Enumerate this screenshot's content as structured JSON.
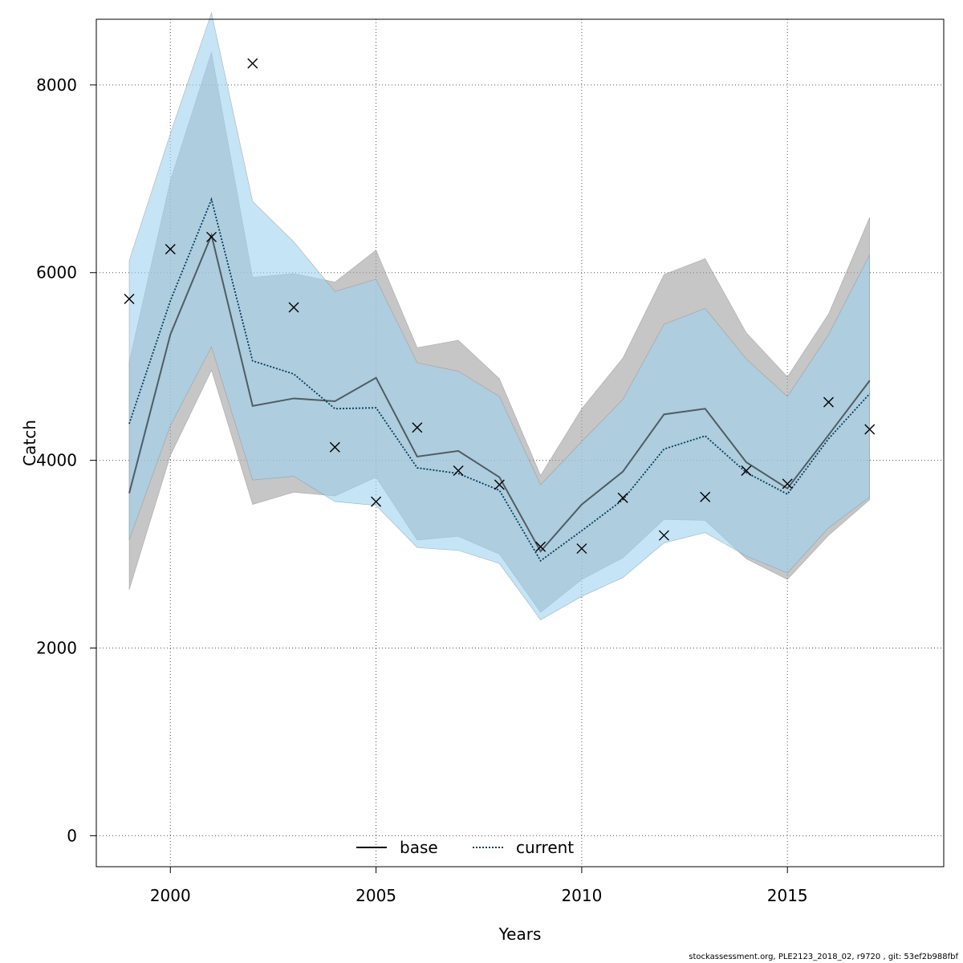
{
  "chart_data": {
    "type": "line",
    "xlabel": "Years",
    "ylabel": "Catch",
    "xlim": [
      1998.2,
      2018.8
    ],
    "ylim": [
      -330,
      8700
    ],
    "x_ticks": [
      2000,
      2005,
      2010,
      2015
    ],
    "y_ticks": [
      0,
      2000,
      4000,
      6000,
      8000
    ],
    "grid": true,
    "legend_position": "bottom-center",
    "years": [
      1999,
      2000,
      2001,
      2002,
      2003,
      2004,
      2005,
      2006,
      2007,
      2008,
      2009,
      2010,
      2011,
      2012,
      2013,
      2014,
      2015,
      2016,
      2017
    ],
    "observed": {
      "marker": "x",
      "values": [
        5720,
        6250,
        6380,
        8230,
        5630,
        4140,
        3560,
        4350,
        3890,
        3740,
        3080,
        3060,
        3600,
        3200,
        3610,
        3890,
        3750,
        4620,
        4330
      ]
    },
    "series": [
      {
        "name": "base",
        "line_style": "solid",
        "line_color": "#000000",
        "band_color": "#a0a0a0",
        "values": [
          3650,
          5340,
          6400,
          4580,
          4660,
          4630,
          4880,
          4040,
          4100,
          3820,
          3030,
          3530,
          3880,
          4490,
          4550,
          3980,
          3700,
          4270,
          4850
        ],
        "upper": [
          5050,
          6980,
          8350,
          5950,
          5990,
          5900,
          6240,
          5200,
          5280,
          4870,
          3840,
          4550,
          5090,
          5980,
          6150,
          5360,
          4890,
          5560,
          6590
        ],
        "lower": [
          2620,
          4050,
          4960,
          3530,
          3660,
          3620,
          3820,
          3150,
          3190,
          3000,
          2380,
          2730,
          2960,
          3370,
          3360,
          2950,
          2730,
          3200,
          3580
        ]
      },
      {
        "name": "current",
        "line_style": "dotted",
        "line_color": "#003c5a",
        "band_color": "#9ed2ee",
        "values": [
          4390,
          5700,
          6780,
          5060,
          4920,
          4550,
          4560,
          3920,
          3860,
          3680,
          2930,
          3250,
          3580,
          4120,
          4260,
          3870,
          3640,
          4230,
          4710
        ],
        "upper": [
          6130,
          7480,
          8770,
          6760,
          6330,
          5800,
          5930,
          5040,
          4950,
          4680,
          3740,
          4200,
          4650,
          5450,
          5620,
          5080,
          4680,
          5340,
          6190
        ],
        "lower": [
          3150,
          4370,
          5210,
          3790,
          3830,
          3560,
          3520,
          3070,
          3040,
          2900,
          2300,
          2550,
          2750,
          3120,
          3230,
          2980,
          2800,
          3280,
          3610
        ]
      }
    ],
    "footer": "stockassessment.org, PLE2123_2018_02, r9720 , git: 53ef2b988fbf"
  }
}
